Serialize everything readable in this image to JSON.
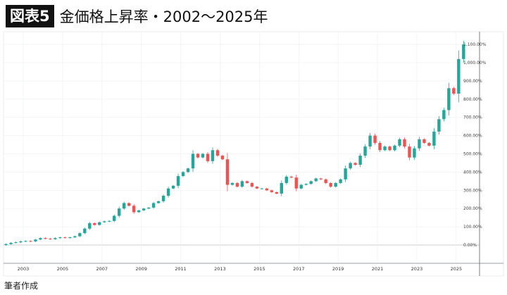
{
  "header": {
    "figure_label": "図表5",
    "title": "金価格上昇率・2002〜2025年"
  },
  "footer": {
    "source": "筆者作成"
  },
  "colors": {
    "up": "#26a69a",
    "down": "#ef5350",
    "grid": "#eef1f4",
    "badge": "#111111"
  },
  "chart_data": {
    "type": "candlestick",
    "title": "金価格上昇率・2002〜2025年",
    "xlabel": "",
    "ylabel": "",
    "xlim": [
      2002,
      2026
    ],
    "ylim": [
      -100,
      1160
    ],
    "grid": true,
    "y_axis_position": "right",
    "x_ticks": [
      "2003",
      "2005",
      "2007",
      "2009",
      "2011",
      "2013",
      "2015",
      "2017",
      "2019",
      "2021",
      "2023",
      "2025"
    ],
    "y_ticks": [
      "0.00%",
      "100.00%",
      "200.00%",
      "300.00%",
      "400.00%",
      "500.00%",
      "600.00%",
      "700.00%",
      "800.00%",
      "900.00%",
      "1,000.00%",
      "1,100.00%"
    ],
    "y_tick_values": [
      0,
      100,
      200,
      300,
      400,
      500,
      600,
      700,
      800,
      900,
      1000,
      1100
    ],
    "period": "quarterly",
    "start": "2002-Q1",
    "close_pct": [
      5,
      12,
      15,
      20,
      22,
      20,
      30,
      38,
      35,
      32,
      38,
      42,
      40,
      42,
      48,
      65,
      90,
      120,
      110,
      125,
      130,
      132,
      160,
      200,
      230,
      215,
      180,
      190,
      200,
      205,
      230,
      240,
      270,
      310,
      325,
      378,
      400,
      420,
      500,
      480,
      500,
      460,
      520,
      490,
      470,
      330,
      340,
      320,
      350,
      340,
      320,
      310,
      310,
      300,
      290,
      282,
      340,
      375,
      370,
      310,
      330,
      335,
      350,
      365,
      360,
      340,
      320,
      340,
      360,
      420,
      450,
      440,
      490,
      540,
      600,
      560,
      520,
      540,
      520,
      545,
      580,
      540,
      480,
      530,
      580,
      560,
      545,
      622,
      690,
      740,
      860,
      830,
      1020,
      1100
    ]
  }
}
